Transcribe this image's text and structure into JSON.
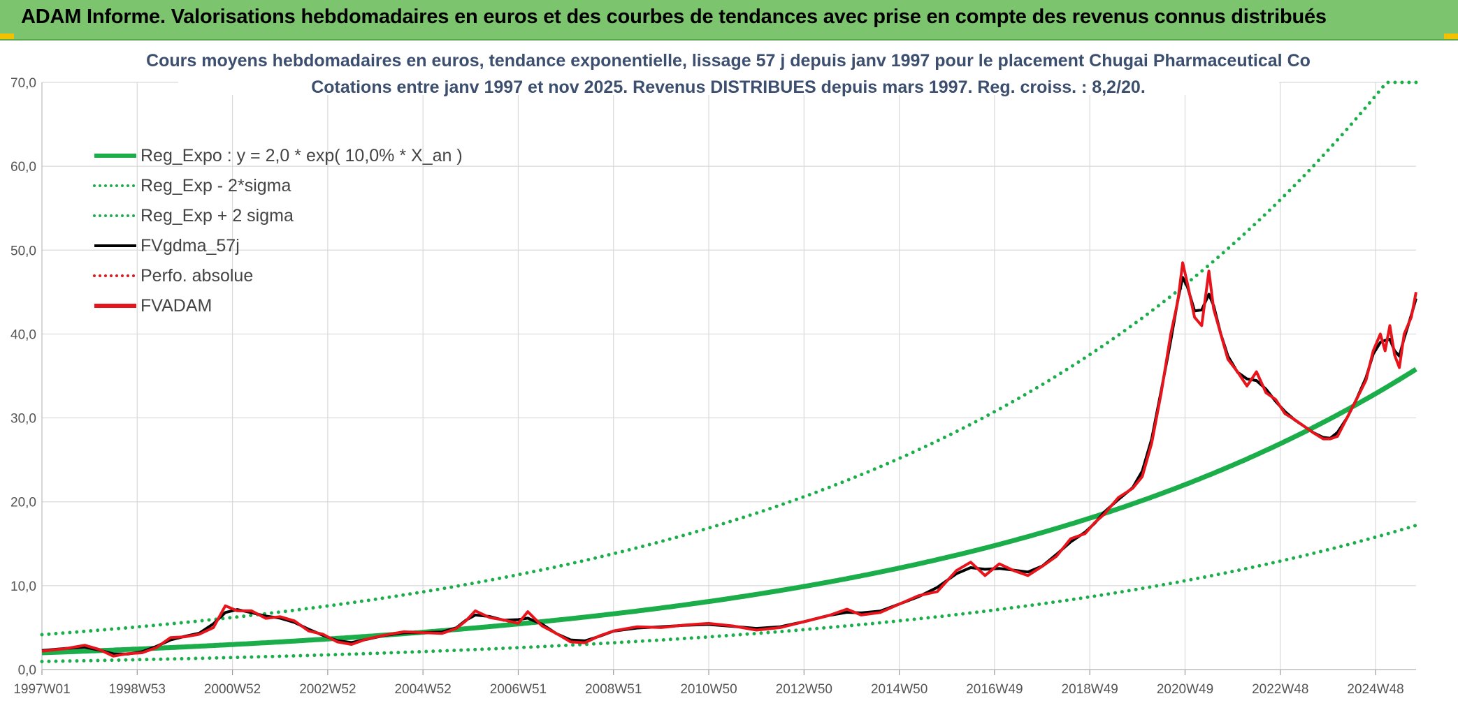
{
  "banner": {
    "title": "ADAM Informe. Valorisations hebdomadaires en euros et des courbes de tendances avec prise en compte des revenus connus distribués"
  },
  "colors": {
    "banner": "#7dc46e",
    "reg_expo": "#1aad4a",
    "fvgdma": "#000000",
    "fvadam": "#e8141b",
    "perfo": "#e8141b",
    "grid": "#d9d9d9"
  },
  "chart_data": {
    "type": "line",
    "title": [
      "Cours moyens hebdomadaires en euros, tendance exponentielle, lissage 57 j depuis janv 1997 pour le placement Chugai Pharmaceutical Co",
      "Cotations entre janv 1997 et nov 2025. Revenus DISTRIBUES depuis mars 1997. Reg. croiss. : 8,2/20."
    ],
    "xlabel": "",
    "ylabel": "",
    "ylim": [
      0,
      70
    ],
    "yticks": [
      "0,0",
      "10,0",
      "20,0",
      "30,0",
      "40,0",
      "50,0",
      "60,0",
      "70,0"
    ],
    "x_range_years": [
      1997.0,
      2025.85
    ],
    "xticks": [
      {
        "label": "1997W01",
        "year": 1997.0
      },
      {
        "label": "1998W53",
        "year": 1999.0
      },
      {
        "label": "2000W52",
        "year": 2001.0
      },
      {
        "label": "2002W52",
        "year": 2003.0
      },
      {
        "label": "2004W52",
        "year": 2005.0
      },
      {
        "label": "2006W51",
        "year": 2007.0
      },
      {
        "label": "2008W51",
        "year": 2009.0
      },
      {
        "label": "2010W50",
        "year": 2011.0
      },
      {
        "label": "2012W50",
        "year": 2013.0
      },
      {
        "label": "2014W50",
        "year": 2015.0
      },
      {
        "label": "2016W49",
        "year": 2017.0
      },
      {
        "label": "2018W49",
        "year": 2019.0
      },
      {
        "label": "2020W49",
        "year": 2021.0
      },
      {
        "label": "2022W48",
        "year": 2023.0
      },
      {
        "label": "2024W48",
        "year": 2025.0
      }
    ],
    "grid": true,
    "legend_position": "top-left",
    "regression": {
      "a": 2.0,
      "rate": 0.1,
      "sigma_lower_factor": 0.48,
      "sigma_upper_factor": 2.08
    },
    "series": [
      {
        "name": "Reg_Expo : y = 2,0 * exp( 10,0% *  X_an )",
        "style": "solid-thick",
        "color": "#1aad4a",
        "kind": "reg"
      },
      {
        "name": "Reg_Exp - 2*sigma",
        "style": "dotted",
        "color": "#1aad4a",
        "kind": "reg_low"
      },
      {
        "name": "Reg_Exp + 2 sigma",
        "style": "dotted",
        "color": "#1aad4a",
        "kind": "reg_high"
      },
      {
        "name": "FVgdma_57j",
        "style": "solid",
        "color": "#000000",
        "kind": "smooth"
      },
      {
        "name": "Perfo. absolue",
        "style": "dotted",
        "color": "#e8141b",
        "kind": "none"
      },
      {
        "name": "FVADAM",
        "style": "solid-thick",
        "color": "#e8141b",
        "kind": "price"
      }
    ],
    "price_points": [
      [
        1997.0,
        2.2
      ],
      [
        1997.5,
        2.5
      ],
      [
        1997.9,
        2.9
      ],
      [
        1998.2,
        2.4
      ],
      [
        1998.5,
        1.6
      ],
      [
        1998.8,
        1.9
      ],
      [
        1999.1,
        2.0
      ],
      [
        1999.4,
        2.6
      ],
      [
        1999.7,
        3.8
      ],
      [
        2000.0,
        3.9
      ],
      [
        2000.3,
        4.2
      ],
      [
        2000.6,
        5.0
      ],
      [
        2000.85,
        7.6
      ],
      [
        2001.1,
        7.0
      ],
      [
        2001.4,
        7.0
      ],
      [
        2001.7,
        6.1
      ],
      [
        2002.0,
        6.3
      ],
      [
        2002.3,
        5.8
      ],
      [
        2002.6,
        4.6
      ],
      [
        2002.9,
        4.2
      ],
      [
        2003.2,
        3.3
      ],
      [
        2003.5,
        3.0
      ],
      [
        2003.8,
        3.6
      ],
      [
        2004.2,
        4.1
      ],
      [
        2004.6,
        4.5
      ],
      [
        2005.0,
        4.4
      ],
      [
        2005.4,
        4.3
      ],
      [
        2005.7,
        4.9
      ],
      [
        2005.9,
        5.8
      ],
      [
        2006.1,
        7.0
      ],
      [
        2006.4,
        6.2
      ],
      [
        2006.7,
        5.9
      ],
      [
        2007.0,
        5.5
      ],
      [
        2007.2,
        6.9
      ],
      [
        2007.5,
        5.2
      ],
      [
        2007.8,
        4.3
      ],
      [
        2008.1,
        3.3
      ],
      [
        2008.4,
        3.2
      ],
      [
        2008.7,
        4.0
      ],
      [
        2009.0,
        4.6
      ],
      [
        2009.5,
        5.1
      ],
      [
        2010.0,
        5.0
      ],
      [
        2010.5,
        5.3
      ],
      [
        2011.0,
        5.5
      ],
      [
        2011.5,
        5.2
      ],
      [
        2012.0,
        4.7
      ],
      [
        2012.5,
        5.0
      ],
      [
        2013.0,
        5.7
      ],
      [
        2013.5,
        6.4
      ],
      [
        2013.9,
        7.2
      ],
      [
        2014.2,
        6.5
      ],
      [
        2014.6,
        6.8
      ],
      [
        2015.0,
        7.8
      ],
      [
        2015.4,
        8.8
      ],
      [
        2015.8,
        9.3
      ],
      [
        2016.2,
        11.8
      ],
      [
        2016.5,
        12.8
      ],
      [
        2016.8,
        11.2
      ],
      [
        2017.1,
        12.6
      ],
      [
        2017.4,
        11.8
      ],
      [
        2017.7,
        11.2
      ],
      [
        2018.0,
        12.3
      ],
      [
        2018.3,
        13.5
      ],
      [
        2018.6,
        15.6
      ],
      [
        2018.9,
        16.2
      ],
      [
        2019.1,
        17.5
      ],
      [
        2019.3,
        18.5
      ],
      [
        2019.6,
        20.5
      ],
      [
        2019.9,
        21.6
      ],
      [
        2020.1,
        23.0
      ],
      [
        2020.3,
        27.0
      ],
      [
        2020.5,
        33.0
      ],
      [
        2020.7,
        40.0
      ],
      [
        2020.85,
        44.0
      ],
      [
        2020.95,
        48.5
      ],
      [
        2021.05,
        46.0
      ],
      [
        2021.2,
        42.0
      ],
      [
        2021.35,
        41.0
      ],
      [
        2021.5,
        47.5
      ],
      [
        2021.6,
        43.0
      ],
      [
        2021.75,
        40.0
      ],
      [
        2021.9,
        37.0
      ],
      [
        2022.1,
        35.5
      ],
      [
        2022.3,
        33.8
      ],
      [
        2022.5,
        35.5
      ],
      [
        2022.7,
        33.0
      ],
      [
        2022.9,
        32.2
      ],
      [
        2023.1,
        30.5
      ],
      [
        2023.3,
        29.8
      ],
      [
        2023.5,
        29.0
      ],
      [
        2023.7,
        28.2
      ],
      [
        2023.9,
        27.5
      ],
      [
        2024.05,
        27.5
      ],
      [
        2024.2,
        27.8
      ],
      [
        2024.4,
        30.0
      ],
      [
        2024.6,
        32.2
      ],
      [
        2024.8,
        34.5
      ],
      [
        2024.95,
        38.0
      ],
      [
        2025.1,
        40.0
      ],
      [
        2025.2,
        38.0
      ],
      [
        2025.3,
        41.0
      ],
      [
        2025.4,
        37.5
      ],
      [
        2025.5,
        36.0
      ],
      [
        2025.6,
        40.0
      ],
      [
        2025.75,
        42.0
      ],
      [
        2025.85,
        45.0
      ]
    ]
  }
}
